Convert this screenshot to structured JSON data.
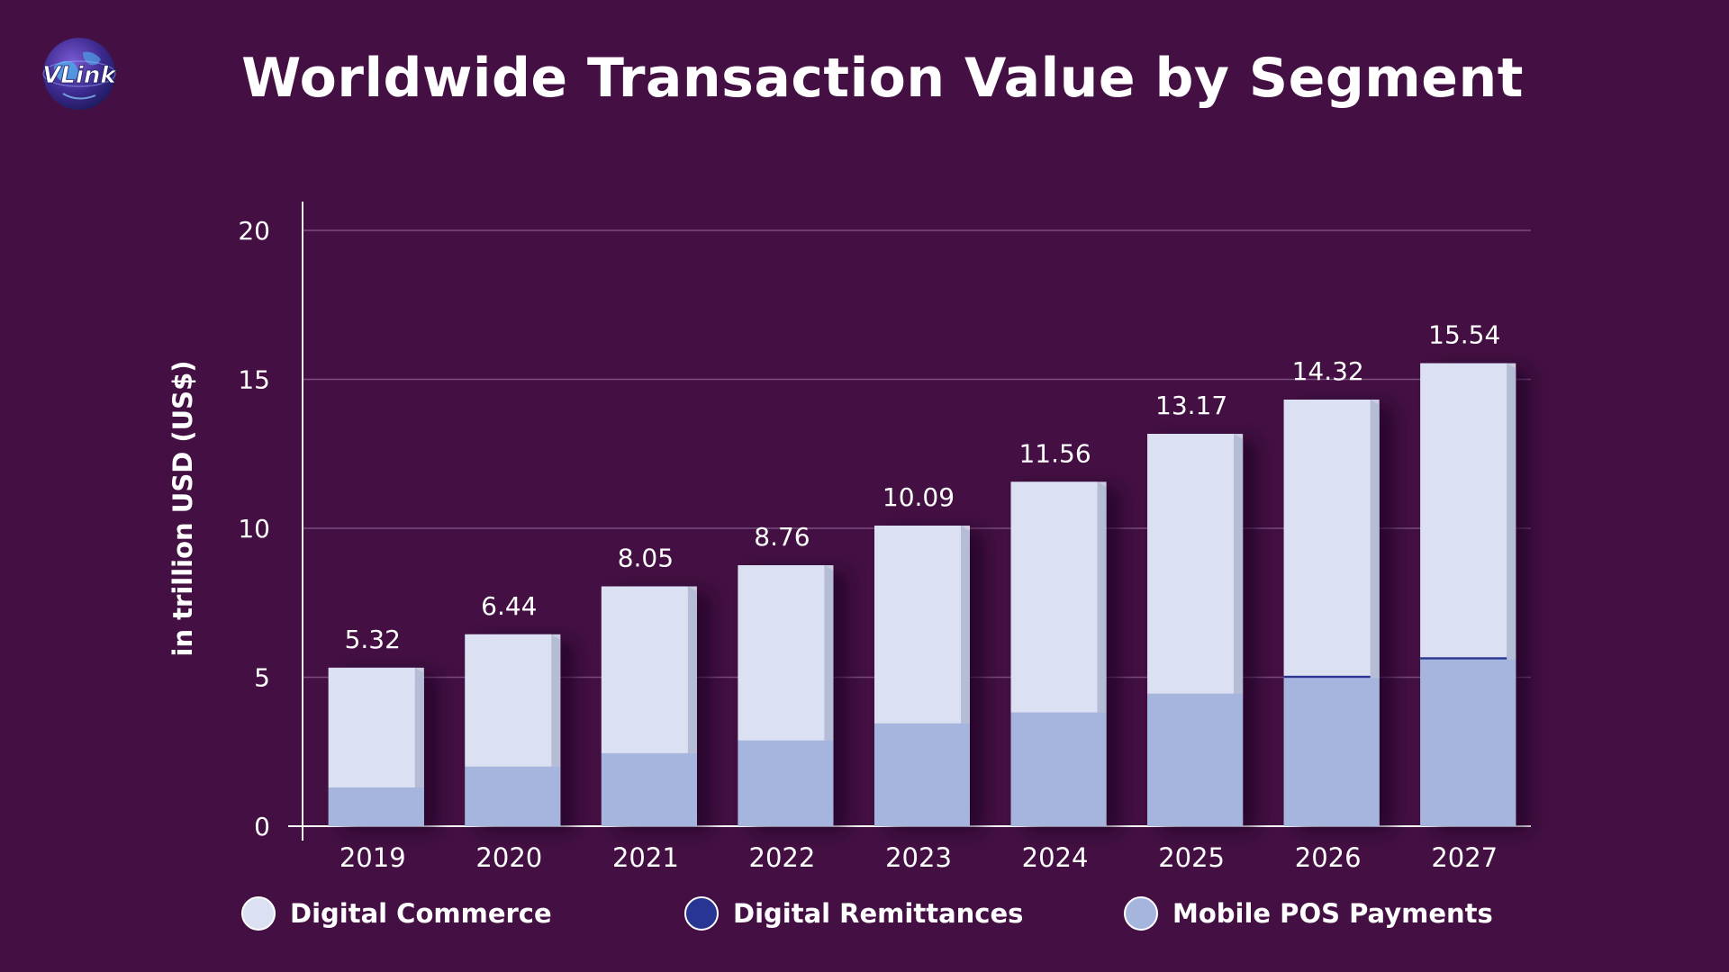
{
  "logo": {
    "text": "VLink"
  },
  "chart_data": {
    "type": "bar",
    "stacked": true,
    "title": "Worldwide Transaction Value by Segment",
    "xlabel": "",
    "ylabel": "in trillion USD (US$)",
    "ylim": [
      0,
      20
    ],
    "yticks": [
      0,
      5,
      10,
      15,
      20
    ],
    "grid": true,
    "categories": [
      "2019",
      "2020",
      "2021",
      "2022",
      "2023",
      "2024",
      "2025",
      "2026",
      "2027"
    ],
    "totals": [
      5.32,
      6.44,
      8.05,
      8.76,
      10.09,
      11.56,
      13.17,
      14.32,
      15.54
    ],
    "total_labels": [
      "5.32",
      "6.44",
      "8.05",
      "8.76",
      "10.09",
      "11.56",
      "13.17",
      "14.32",
      "15.54"
    ],
    "series": [
      {
        "name": "Mobile POS Payments",
        "color": "#a6b5de",
        "values": [
          1.3,
          2.0,
          2.45,
          2.88,
          3.45,
          3.82,
          4.45,
          4.98,
          5.6
        ]
      },
      {
        "name": "Digital Remittances",
        "color": "#283593",
        "values": [
          0.0,
          0.0,
          0.0,
          0.0,
          0.0,
          0.0,
          0.0,
          0.07,
          0.07
        ]
      },
      {
        "name": "Digital Commerce",
        "color": "#dbe1f2",
        "values": [
          4.02,
          4.44,
          5.6,
          5.88,
          6.64,
          7.74,
          8.72,
          9.27,
          9.87
        ]
      }
    ],
    "legend": [
      {
        "label": "Digital Commerce",
        "color": "#dbe1f2"
      },
      {
        "label": "Digital Remittances",
        "color": "#283593"
      },
      {
        "label": "Mobile POS Payments",
        "color": "#a6b5de"
      }
    ]
  }
}
